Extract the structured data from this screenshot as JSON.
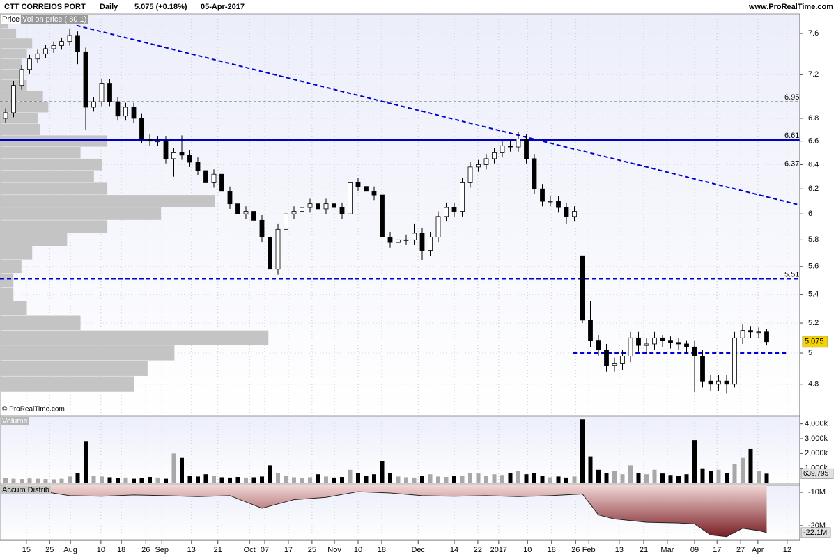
{
  "header": {
    "symbol": "CTT CORREIOS PORT",
    "period": "Daily",
    "quote": "5.075 (+0.18%)",
    "date": "05-Apr-2017",
    "site": "www.ProRealTime.com",
    "price_label": "Price",
    "profile_label": "Vol on price ( 80 1)",
    "copyright": "© ProRealTime.com"
  },
  "chart_data": [
    {
      "type": "candlestick",
      "log_scale": true,
      "up_color": "#ffffff",
      "down_color": "#000000",
      "xlim": [
        -1.39,
        198.26
      ],
      "ylim": [
        4.606,
        7.797
      ],
      "yticks": [
        4.8,
        5,
        5.2,
        5.4,
        5.6,
        5.8,
        6,
        6.2,
        6.4,
        6.6,
        6.8,
        7.2,
        7.6
      ],
      "x": [
        0,
        2,
        4,
        6,
        8,
        10,
        12,
        14,
        16,
        18,
        20,
        22,
        24,
        26,
        28,
        30,
        32,
        34,
        36,
        38,
        40,
        42,
        44,
        46,
        48,
        50,
        52,
        54,
        56,
        58,
        60,
        62,
        64,
        66,
        68,
        70,
        72,
        74,
        76,
        78,
        80,
        82,
        84,
        86,
        88,
        90,
        92,
        94,
        96,
        98,
        100,
        102,
        104,
        106,
        108,
        110,
        112,
        114,
        116,
        118,
        120,
        122,
        124,
        126,
        128,
        130,
        132,
        134,
        136,
        138,
        140,
        142,
        144,
        146,
        148,
        150,
        152,
        154,
        156,
        158,
        160,
        162,
        164,
        166,
        168,
        170,
        172,
        174,
        176,
        178,
        180,
        182,
        184,
        186,
        188,
        190
      ],
      "open": [
        6.8,
        6.85,
        7.1,
        7.25,
        7.35,
        7.4,
        7.45,
        7.48,
        7.52,
        7.58,
        7.42,
        6.9,
        6.95,
        7.12,
        6.95,
        6.82,
        6.9,
        6.8,
        6.62,
        6.6,
        6.6,
        6.45,
        6.5,
        6.48,
        6.42,
        6.35,
        6.25,
        6.32,
        6.18,
        6.08,
        6.0,
        6.02,
        5.95,
        5.82,
        5.58,
        5.88,
        6.0,
        6.02,
        6.05,
        6.08,
        6.04,
        6.08,
        6.05,
        6.0,
        6.25,
        6.22,
        6.18,
        6.15,
        5.82,
        5.78,
        5.8,
        5.8,
        5.85,
        5.72,
        5.82,
        5.98,
        6.05,
        6.02,
        6.25,
        6.38,
        6.4,
        6.45,
        6.5,
        6.56,
        6.55,
        6.62,
        6.45,
        6.2,
        6.1,
        6.1,
        6.05,
        5.98,
        5.68,
        5.22,
        5.08,
        5.02,
        4.92,
        4.93,
        4.98,
        5.1,
        5.05,
        5.06,
        5.1,
        5.08,
        5.07,
        5.06,
        5.04,
        4.98,
        4.82,
        4.8,
        4.82,
        4.8,
        5.1,
        5.15,
        5.14,
        5.14
      ],
      "high": [
        6.89,
        7.14,
        7.29,
        7.39,
        7.44,
        7.49,
        7.52,
        7.56,
        7.65,
        7.62,
        7.46,
        6.99,
        7.16,
        7.16,
        6.99,
        6.94,
        6.94,
        6.84,
        6.66,
        6.64,
        6.64,
        6.54,
        6.65,
        6.52,
        6.46,
        6.39,
        6.36,
        6.36,
        6.22,
        6.12,
        6.06,
        6.06,
        5.99,
        5.86,
        5.92,
        6.04,
        6.06,
        6.09,
        6.12,
        6.12,
        6.12,
        6.12,
        6.09,
        6.35,
        6.29,
        6.26,
        6.22,
        6.19,
        5.86,
        5.84,
        5.84,
        5.92,
        5.89,
        5.86,
        6.02,
        6.09,
        6.09,
        6.29,
        6.42,
        6.44,
        6.49,
        6.54,
        6.6,
        6.6,
        6.68,
        6.66,
        6.49,
        6.24,
        6.14,
        6.14,
        6.09,
        6.06,
        5.68,
        5.35,
        5.12,
        5.06,
        4.97,
        5.02,
        5.14,
        5.14,
        5.1,
        5.14,
        5.12,
        5.11,
        5.1,
        5.08,
        5.08,
        5.02,
        4.86,
        4.86,
        4.86,
        5.14,
        5.19,
        5.18,
        5.17,
        5.16
      ],
      "low": [
        6.76,
        6.81,
        7.06,
        7.21,
        7.31,
        7.36,
        7.41,
        7.44,
        7.48,
        7.3,
        6.7,
        6.86,
        6.91,
        6.91,
        6.78,
        6.78,
        6.76,
        6.58,
        6.56,
        6.56,
        6.41,
        6.3,
        6.44,
        6.38,
        6.31,
        6.21,
        6.21,
        6.14,
        6.04,
        5.96,
        5.96,
        5.91,
        5.78,
        5.51,
        5.54,
        5.84,
        5.96,
        5.98,
        6.01,
        6.0,
        6.0,
        6.01,
        5.96,
        5.96,
        6.18,
        6.14,
        6.11,
        5.58,
        5.74,
        5.74,
        5.76,
        5.76,
        5.65,
        5.68,
        5.78,
        5.94,
        5.98,
        5.98,
        6.21,
        6.34,
        6.36,
        6.41,
        6.46,
        6.51,
        6.51,
        6.41,
        6.16,
        6.06,
        6.06,
        6.01,
        5.92,
        5.94,
        5.2,
        5.04,
        4.98,
        4.88,
        4.88,
        4.89,
        4.94,
        5.01,
        5.01,
        5.02,
        5.04,
        5.03,
        5.02,
        5.0,
        4.75,
        4.78,
        4.76,
        4.76,
        4.74,
        4.78,
        5.06,
        5.1,
        5.1,
        5.05
      ],
      "close": [
        6.85,
        7.1,
        7.25,
        7.35,
        7.4,
        7.45,
        7.48,
        7.52,
        7.58,
        7.42,
        6.9,
        6.95,
        7.12,
        6.95,
        6.82,
        6.9,
        6.8,
        6.62,
        6.6,
        6.6,
        6.45,
        6.5,
        6.48,
        6.42,
        6.35,
        6.25,
        6.32,
        6.18,
        6.08,
        6.0,
        6.02,
        5.95,
        5.82,
        5.58,
        5.88,
        6.0,
        6.02,
        6.05,
        6.08,
        6.04,
        6.08,
        6.05,
        6.0,
        6.25,
        6.22,
        6.18,
        6.15,
        5.82,
        5.78,
        5.8,
        5.8,
        5.85,
        5.72,
        5.82,
        5.98,
        6.05,
        6.02,
        6.25,
        6.38,
        6.4,
        6.45,
        6.5,
        6.56,
        6.55,
        6.62,
        6.45,
        6.2,
        6.1,
        6.1,
        6.05,
        5.98,
        6.02,
        5.22,
        5.08,
        5.02,
        4.92,
        4.93,
        4.98,
        5.1,
        5.05,
        5.06,
        5.1,
        5.08,
        5.07,
        5.06,
        5.04,
        4.98,
        4.82,
        4.8,
        4.82,
        4.8,
        5.1,
        5.15,
        5.14,
        5.14,
        5.075
      ],
      "last_color": "#f5d300",
      "levels": [
        {
          "value": 6.95,
          "color": "#333333",
          "style": "dashed",
          "show_label": true
        },
        {
          "value": 6.61,
          "color": "#0000c0",
          "style": "solid",
          "show_label": true
        },
        {
          "value": 6.37,
          "color": "#333333",
          "style": "dashed",
          "show_label": true
        },
        {
          "value": 5.51,
          "color": "#0000d0",
          "style": "bold-dashed",
          "show_label": true
        },
        {
          "value": 5.0,
          "color": "#0000d0",
          "style": "bold-dashed",
          "show_label": false,
          "x": [
            141.6,
            195.1
          ]
        }
      ],
      "trendline": {
        "x": [
          17.7,
          198.26
        ],
        "y": [
          7.68,
          6.07
        ],
        "color": "#0000d0"
      },
      "profile": {
        "color": "#c4c4c4",
        "xlim": [
          0,
          298
        ],
        "bins": [
          4.75,
          4.85,
          4.95,
          5.05,
          5.15,
          5.25,
          5.35,
          5.45,
          5.55,
          5.65,
          5.75,
          5.85,
          5.95,
          6.05,
          6.15,
          6.25,
          6.35,
          6.45,
          6.55,
          6.65,
          6.75,
          6.85,
          6.95,
          7.05,
          7.15,
          7.25,
          7.35,
          7.45,
          7.55,
          7.65,
          7.75
        ],
        "counts": [
          50,
          55,
          65,
          100,
          30,
          10,
          5,
          5,
          8,
          12,
          25,
          40,
          60,
          80,
          40,
          35,
          38,
          30,
          40,
          15,
          14,
          18,
          16,
          10,
          8,
          8,
          10,
          12,
          6,
          3
        ]
      }
    },
    {
      "type": "bar",
      "title": "Volume",
      "up_color": "#a8a8a8",
      "down_color": "#000000",
      "ylim": [
        0,
        4500
      ],
      "yticks": [
        {
          "value": 1000,
          "label": "1,000k"
        },
        {
          "value": 2000,
          "label": "2,000k"
        },
        {
          "value": 3000,
          "label": "3,000k"
        },
        {
          "value": 4000,
          "label": "4,000k"
        }
      ],
      "values": [
        350,
        300,
        280,
        320,
        300,
        280,
        260,
        300,
        450,
        700,
        2800,
        500,
        450,
        400,
        350,
        380,
        300,
        350,
        420,
        380,
        300,
        2000,
        1700,
        500,
        450,
        600,
        500,
        400,
        380,
        420,
        380,
        400,
        450,
        1200,
        700,
        500,
        400,
        350,
        400,
        600,
        450,
        380,
        420,
        900,
        700,
        500,
        600,
        1500,
        700,
        450,
        400,
        380,
        500,
        600,
        450,
        420,
        480,
        500,
        700,
        650,
        500,
        600,
        550,
        700,
        800,
        600,
        700,
        500,
        400,
        450,
        380,
        450,
        4300,
        1800,
        900,
        700,
        800,
        600,
        1200,
        700,
        600,
        900,
        650,
        550,
        500,
        600,
        2900,
        1000,
        800,
        900,
        700,
        1300,
        1700,
        2300,
        800,
        639.795
      ],
      "last_label": "639,795"
    },
    {
      "type": "area",
      "title": "Accum Distrib",
      "color": "#7a1f24",
      "ylim": [
        -24.2,
        -7.9
      ],
      "yticks": [
        {
          "value": -10,
          "label": "-10M"
        },
        {
          "value": -20,
          "label": "-20M"
        }
      ],
      "x": [
        0,
        8,
        16,
        24,
        32,
        40,
        48,
        56,
        64,
        72,
        80,
        88,
        96,
        104,
        112,
        120,
        128,
        136,
        144,
        148,
        152,
        160,
        168,
        172,
        176,
        180,
        184,
        188,
        190
      ],
      "values": [
        -8.9,
        -9.5,
        -11.0,
        -11.2,
        -10.8,
        -11.0,
        -11.3,
        -11.0,
        -14.8,
        -12.2,
        -11.5,
        -9.8,
        -10.2,
        -11.0,
        -11.2,
        -11.0,
        -11.3,
        -11.0,
        -10.5,
        -16.8,
        -18.0,
        -19.0,
        -19.2,
        -19.5,
        -22.8,
        -23.3,
        -20.8,
        -21.5,
        -22.1
      ],
      "last_label": "-22.1M",
      "xticks": [
        {
          "value": 5.2,
          "label": "15"
        },
        {
          "value": 11.0,
          "label": "25"
        },
        {
          "value": 16.2,
          "label": "Aug"
        },
        {
          "value": 23.8,
          "label": "10"
        },
        {
          "value": 28.9,
          "label": "18"
        },
        {
          "value": 35.0,
          "label": "26"
        },
        {
          "value": 39.0,
          "label": "Sep"
        },
        {
          "value": 46.4,
          "label": "13"
        },
        {
          "value": 53.0,
          "label": "21"
        },
        {
          "value": 60.9,
          "label": "Oct"
        },
        {
          "value": 64.7,
          "label": "07"
        },
        {
          "value": 70.6,
          "label": "17"
        },
        {
          "value": 76.5,
          "label": "25"
        },
        {
          "value": 82.1,
          "label": "Nov"
        },
        {
          "value": 88.0,
          "label": "10"
        },
        {
          "value": 93.9,
          "label": "18"
        },
        {
          "value": 103.0,
          "label": "Dec"
        },
        {
          "value": 112.0,
          "label": "14"
        },
        {
          "value": 117.9,
          "label": "22"
        },
        {
          "value": 123.1,
          "label": "2017"
        },
        {
          "value": 130.3,
          "label": "10"
        },
        {
          "value": 136.3,
          "label": "18"
        },
        {
          "value": 142.3,
          "label": "26"
        },
        {
          "value": 145.6,
          "label": "Feb"
        },
        {
          "value": 153.2,
          "label": "13"
        },
        {
          "value": 159.3,
          "label": "21"
        },
        {
          "value": 165.2,
          "label": "Mar"
        },
        {
          "value": 172.0,
          "label": "09"
        },
        {
          "value": 177.6,
          "label": "17"
        },
        {
          "value": 183.5,
          "label": "27"
        },
        {
          "value": 187.8,
          "label": "Apr"
        },
        {
          "value": 195.1,
          "label": "12"
        }
      ]
    }
  ]
}
